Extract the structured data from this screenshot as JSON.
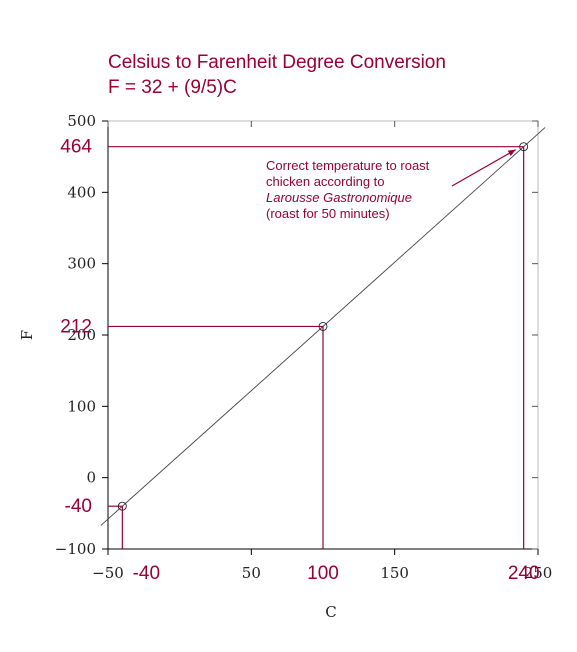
{
  "title": {
    "line1": "Celsius to Farenheit Degree Conversion",
    "line2": "F = 32 + (9/5)C"
  },
  "colors": {
    "accent": "#990033",
    "line": "#444444",
    "axis": "#000000"
  },
  "chart_data": {
    "type": "line",
    "title": "Celsius to Farenheit Degree Conversion",
    "subtitle": "F = 32 + (9/5)C",
    "xlabel": "C",
    "ylabel": "F",
    "xlim": [
      -50,
      250
    ],
    "ylim": [
      -100,
      500
    ],
    "line_range": [
      -55,
      255
    ],
    "x_ticks": [
      -50,
      50,
      150,
      250
    ],
    "y_ticks": [
      -100,
      0,
      100,
      200,
      300,
      400,
      500
    ],
    "points": [
      {
        "c": -40,
        "f": -40,
        "c_label": "-40",
        "f_label": "-40"
      },
      {
        "c": 100,
        "f": 212,
        "c_label": "100",
        "f_label": "212"
      },
      {
        "c": 240,
        "f": 464,
        "c_label": "240",
        "f_label": "464"
      }
    ],
    "annotation": {
      "lines": [
        "Correct temperature to roast",
        "chicken according to",
        "Larousse Gastronomique",
        "(roast for 50 minutes)"
      ],
      "italic_line": 2
    },
    "grid": false
  }
}
